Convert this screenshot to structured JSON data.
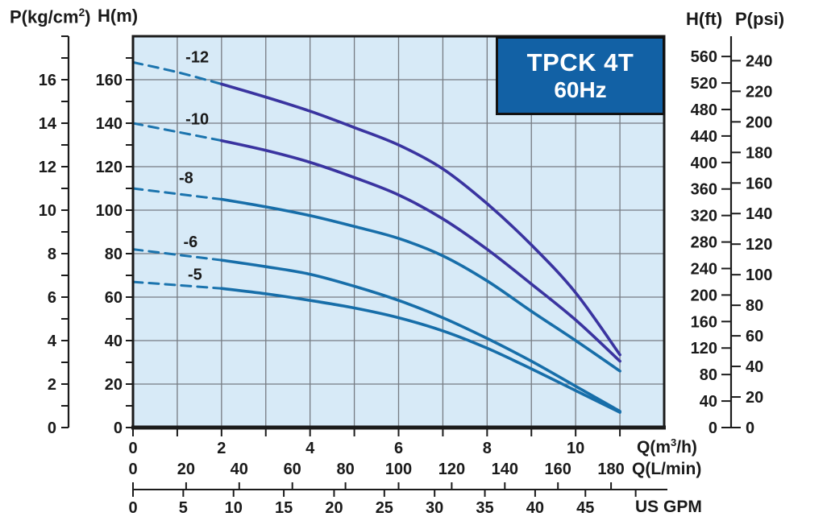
{
  "title_box": {
    "line1": "TPCK 4T",
    "line2": "60Hz"
  },
  "labels": {
    "kgcm2": {
      "pre": "P(kg/cm",
      "sup": "2",
      "post": ")"
    },
    "hm": "H(m)",
    "hft": "H(ft)",
    "psi": "P(psi)",
    "m3h": {
      "pre": "Q(m",
      "sup": "3",
      "post": "/h)"
    },
    "lmin": "Q(L/min)",
    "gpm": "US GPM"
  },
  "colors": {
    "plot_bg": "#d7eaf7",
    "grid": "#767b82",
    "frame": "#1b1b1b",
    "curve_indigo": "#3a34a0",
    "curve_teal": "#176ea9",
    "dash_teal": "#1b74ae",
    "text": "#1a1a1a",
    "title_box_bg": "#1261a5",
    "title_box_border": "#111111",
    "title_box_text": "#ffffff"
  },
  "chart_data": {
    "type": "line",
    "title": "TPCK 4T 60Hz",
    "q_max": 12,
    "h_max": 180,
    "grid": {
      "q_step": 1,
      "h_step": 20
    },
    "axes": {
      "q_m3h": {
        "unit": "m³/h",
        "tick_step": 1,
        "tick_max": 11,
        "labels": [
          0,
          2,
          4,
          6,
          8,
          10
        ]
      },
      "h_m": {
        "unit": "m",
        "minor_step": 10,
        "minor_max": 170,
        "labels": [
          0,
          20,
          40,
          60,
          80,
          100,
          120,
          140,
          160
        ]
      },
      "p_kgcm2": {
        "unit": "kg/cm²",
        "m_per_unit": 10,
        "tick_step": 1,
        "tick_max": 18,
        "labels": [
          0,
          2,
          4,
          6,
          8,
          10,
          12,
          14,
          16
        ]
      },
      "h_ft": {
        "unit": "ft",
        "m_per_unit": 0.3048,
        "tick_step": 40,
        "labels": [
          0,
          40,
          80,
          120,
          160,
          200,
          240,
          280,
          320,
          360,
          400,
          440,
          480,
          520,
          560
        ]
      },
      "p_psi": {
        "unit": "psi",
        "m_per_unit": 0.70307,
        "tick_step": 20,
        "labels": [
          0,
          20,
          40,
          60,
          80,
          100,
          120,
          140,
          160,
          180,
          200,
          220,
          240
        ]
      },
      "q_lmin": {
        "unit": "L/min",
        "m3h_per_unit": 0.06,
        "tick_step": 20,
        "labels": [
          0,
          20,
          40,
          60,
          80,
          100,
          120,
          140,
          160,
          180
        ]
      },
      "q_gpm": {
        "unit": "US GPM",
        "m3h_per_unit": 0.22712,
        "tick_step": 5,
        "tick_max": 50,
        "labels": [
          0,
          5,
          10,
          15,
          20,
          25,
          30,
          35,
          40,
          45
        ]
      }
    },
    "series": [
      {
        "name": "-12",
        "color": "indigo",
        "dash_until": 2,
        "label_pos": [
          1.45,
          170.5
        ],
        "points": [
          [
            0,
            168
          ],
          [
            1,
            163.5
          ],
          [
            2,
            158
          ],
          [
            3,
            152
          ],
          [
            4,
            145.5
          ],
          [
            5,
            138
          ],
          [
            6,
            130
          ],
          [
            7,
            119
          ],
          [
            8,
            103
          ],
          [
            9,
            84
          ],
          [
            10,
            62
          ],
          [
            11,
            33.5
          ]
        ]
      },
      {
        "name": "-10",
        "color": "indigo",
        "dash_until": 2,
        "label_pos": [
          1.45,
          142
        ],
        "points": [
          [
            0,
            140
          ],
          [
            1,
            136
          ],
          [
            2,
            132
          ],
          [
            3,
            127.5
          ],
          [
            4,
            122
          ],
          [
            5,
            115
          ],
          [
            6,
            107
          ],
          [
            7,
            96
          ],
          [
            8,
            82
          ],
          [
            9,
            66
          ],
          [
            10,
            49.5
          ],
          [
            11,
            30.5
          ]
        ]
      },
      {
        "name": "-8",
        "color": "teal",
        "dash_until": 2,
        "label_pos": [
          1.2,
          115
        ],
        "points": [
          [
            0,
            110
          ],
          [
            1,
            107.5
          ],
          [
            2,
            105
          ],
          [
            3,
            101.5
          ],
          [
            4,
            97.5
          ],
          [
            5,
            92.5
          ],
          [
            6,
            87
          ],
          [
            7,
            79
          ],
          [
            8,
            67.5
          ],
          [
            9,
            53.5
          ],
          [
            10,
            40
          ],
          [
            11,
            26
          ]
        ]
      },
      {
        "name": "-6",
        "color": "teal",
        "dash_until": 2,
        "label_pos": [
          1.3,
          85.5
        ],
        "points": [
          [
            0,
            82
          ],
          [
            1,
            79.5
          ],
          [
            2,
            77
          ],
          [
            3,
            74
          ],
          [
            4,
            70.5
          ],
          [
            5,
            65
          ],
          [
            6,
            58.5
          ],
          [
            7,
            50.5
          ],
          [
            8,
            41
          ],
          [
            9,
            30.5
          ],
          [
            10,
            19
          ],
          [
            11,
            7.5
          ]
        ]
      },
      {
        "name": "-5",
        "color": "teal",
        "dash_until": 2,
        "label_pos": [
          1.4,
          70.5
        ],
        "points": [
          [
            0,
            67
          ],
          [
            1,
            65.5
          ],
          [
            2,
            64
          ],
          [
            3,
            61.5
          ],
          [
            4,
            58.5
          ],
          [
            5,
            55
          ],
          [
            6,
            50.5
          ],
          [
            7,
            44.5
          ],
          [
            8,
            36.5
          ],
          [
            9,
            27
          ],
          [
            10,
            17
          ],
          [
            11,
            7
          ]
        ]
      }
    ]
  }
}
